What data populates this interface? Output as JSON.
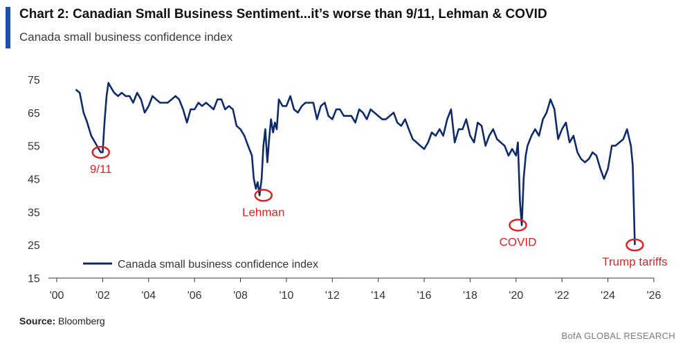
{
  "header": {
    "title": "Chart 2: Canadian Small Business Sentiment...it’s worse than 9/11, Lehman & COVID",
    "subtitle": "Canada small business confidence index"
  },
  "footer": {
    "source_label": "Source:",
    "source_value": "Bloomberg",
    "brand": "BofA GLOBAL RESEARCH"
  },
  "colors": {
    "line": "#0d2a6b",
    "annotation": "#e02020",
    "accent": "#1f4fa8",
    "axis": "#333333"
  },
  "chart_data": {
    "type": "line",
    "xlim": [
      2000,
      2026
    ],
    "ylim": [
      15,
      75
    ],
    "x_tick_labels": [
      "'00",
      "'02",
      "'04",
      "'06",
      "'08",
      "'10",
      "'12",
      "'14",
      "'16",
      "'18",
      "'20",
      "'22",
      "'24",
      "'26"
    ],
    "x_ticks": [
      2000,
      2002,
      2004,
      2006,
      2008,
      2010,
      2012,
      2014,
      2016,
      2018,
      2020,
      2022,
      2024,
      2026
    ],
    "y_ticks": [
      15,
      25,
      35,
      45,
      55,
      65,
      75
    ],
    "y_tick_labels": [
      "15",
      "25",
      "35",
      "45",
      "55",
      "65",
      "75"
    ],
    "legend": {
      "label": "Canada small business confidence index",
      "position": "lower-left"
    },
    "series": [
      {
        "name": "Canada small business confidence index",
        "x": [
          2000.83,
          2001.0,
          2001.17,
          2001.33,
          2001.5,
          2001.67,
          2001.83,
          2001.92,
          2002.0,
          2002.08,
          2002.17,
          2002.25,
          2002.33,
          2002.5,
          2002.67,
          2002.83,
          2003.0,
          2003.17,
          2003.33,
          2003.5,
          2003.67,
          2003.83,
          2004.0,
          2004.17,
          2004.33,
          2004.5,
          2004.67,
          2004.83,
          2005.0,
          2005.17,
          2005.33,
          2005.5,
          2005.67,
          2005.83,
          2006.0,
          2006.17,
          2006.33,
          2006.5,
          2006.67,
          2006.83,
          2007.0,
          2007.17,
          2007.33,
          2007.5,
          2007.67,
          2007.83,
          2008.0,
          2008.17,
          2008.33,
          2008.5,
          2008.58,
          2008.67,
          2008.75,
          2008.83,
          2008.92,
          2009.0,
          2009.08,
          2009.17,
          2009.25,
          2009.33,
          2009.42,
          2009.5,
          2009.58,
          2009.67,
          2009.83,
          2010.0,
          2010.17,
          2010.33,
          2010.5,
          2010.67,
          2010.83,
          2011.0,
          2011.17,
          2011.33,
          2011.5,
          2011.67,
          2011.83,
          2012.0,
          2012.17,
          2012.33,
          2012.5,
          2012.67,
          2012.83,
          2013.0,
          2013.17,
          2013.33,
          2013.5,
          2013.67,
          2013.83,
          2014.0,
          2014.17,
          2014.33,
          2014.5,
          2014.67,
          2014.83,
          2015.0,
          2015.17,
          2015.33,
          2015.5,
          2015.67,
          2015.83,
          2016.0,
          2016.17,
          2016.33,
          2016.5,
          2016.67,
          2016.83,
          2017.0,
          2017.17,
          2017.33,
          2017.5,
          2017.67,
          2017.83,
          2018.0,
          2018.17,
          2018.33,
          2018.5,
          2018.67,
          2018.83,
          2019.0,
          2019.17,
          2019.33,
          2019.5,
          2019.67,
          2019.83,
          2020.0,
          2020.08,
          2020.17,
          2020.25,
          2020.33,
          2020.42,
          2020.5,
          2020.67,
          2020.83,
          2021.0,
          2021.17,
          2021.33,
          2021.5,
          2021.67,
          2021.83,
          2022.0,
          2022.17,
          2022.33,
          2022.5,
          2022.67,
          2022.83,
          2023.0,
          2023.17,
          2023.33,
          2023.5,
          2023.67,
          2023.83,
          2024.0,
          2024.17,
          2024.33,
          2024.5,
          2024.67,
          2024.83,
          2025.0,
          2025.08,
          2025.17
        ],
        "values": [
          72,
          71,
          65,
          62,
          58,
          56,
          54,
          53,
          53,
          62,
          70,
          74,
          73,
          71,
          70,
          71,
          70,
          70,
          68,
          71,
          69,
          65,
          67,
          70,
          69,
          68,
          68,
          68,
          69,
          70,
          69,
          66,
          62,
          66,
          66,
          68,
          67,
          68,
          67,
          66,
          69,
          69,
          66,
          67,
          66,
          61,
          60,
          58,
          55,
          52,
          45,
          42,
          44,
          40,
          45,
          55,
          60,
          50,
          57,
          63,
          59,
          62,
          60,
          69,
          67,
          67,
          70,
          66,
          65,
          67,
          68,
          68,
          68,
          63,
          67,
          68,
          64,
          63,
          66,
          66,
          64,
          64,
          64,
          62,
          66,
          65,
          63,
          66,
          65,
          64,
          63,
          63,
          64,
          65,
          62,
          61,
          63,
          60,
          57,
          56,
          55,
          54,
          56,
          59,
          58,
          60,
          58,
          63,
          66,
          56,
          60,
          60,
          63,
          58,
          56,
          62,
          61,
          55,
          58,
          60,
          57,
          56,
          55,
          52,
          54,
          52,
          56,
          38,
          31,
          45,
          52,
          55,
          58,
          60,
          58,
          63,
          65,
          69,
          66,
          57,
          60,
          62,
          56,
          58,
          53,
          51,
          50,
          51,
          53,
          52,
          48,
          45,
          48,
          55,
          55,
          56,
          57,
          60,
          55,
          49,
          25
        ]
      }
    ],
    "annotations": [
      {
        "label": "9/11",
        "x": 2001.92,
        "y": 53
      },
      {
        "label": "Lehman",
        "x": 2009.0,
        "y": 40
      },
      {
        "label": "COVID",
        "x": 2020.08,
        "y": 31
      },
      {
        "label": "Trump tariffs",
        "x": 2025.17,
        "y": 25
      }
    ]
  }
}
